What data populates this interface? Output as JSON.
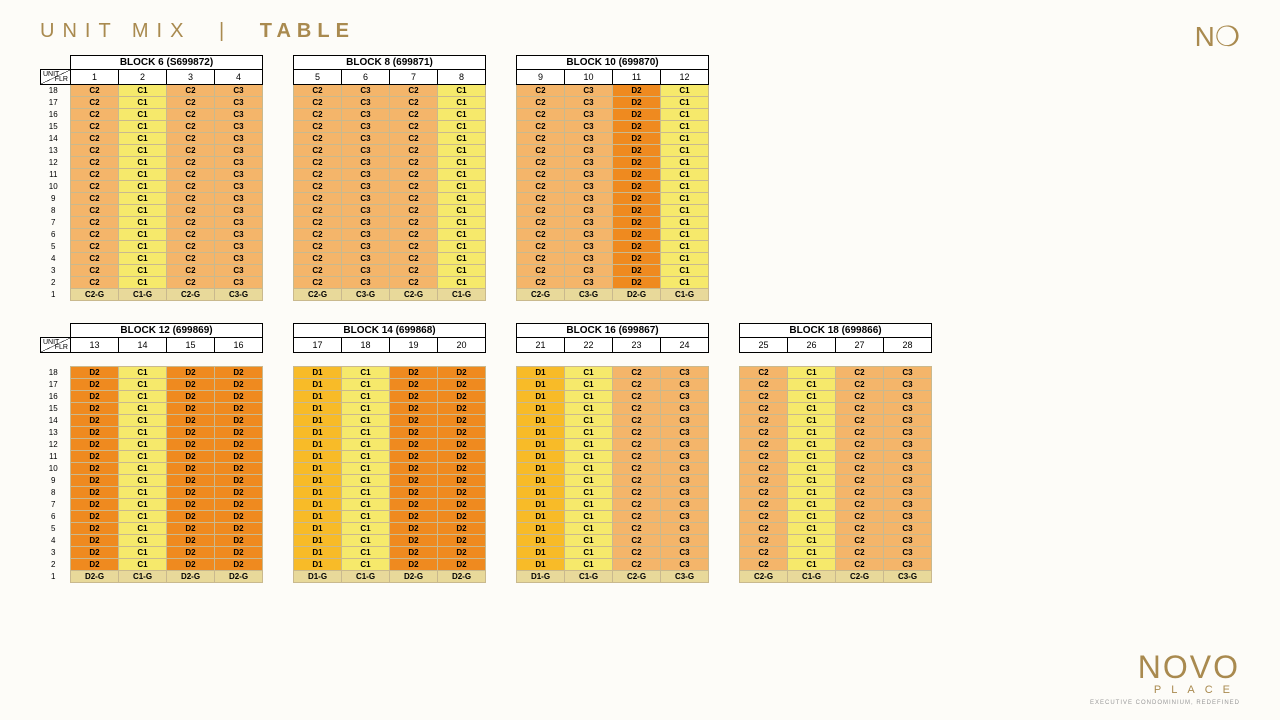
{
  "title_left": "UNIT MIX",
  "title_sep": "|",
  "title_right": "TABLE",
  "logo_top": "N❍",
  "logo_novo": "NOVO",
  "logo_place": "PLACE",
  "logo_tag": "EXECUTIVE CONDOMINIUM, REDEFINED",
  "unit_label": "UNIT",
  "flr_label": "FLR",
  "colors": {
    "C1": "#f6e96b",
    "C2": "#f4b56a",
    "C3": "#f4b56a",
    "D1": "#f8bb28",
    "D2": "#ef8a1f",
    "G": "#e8d99a"
  },
  "floors_desc": [
    18,
    17,
    16,
    15,
    14,
    13,
    12,
    11,
    10,
    9,
    8,
    7,
    6,
    5,
    4,
    3,
    2,
    1
  ],
  "blocks_row1": [
    {
      "title": "BLOCK   6 (S699872)",
      "cols": [
        1,
        2,
        3,
        4
      ],
      "pat": [
        "C2",
        "C1",
        "C2",
        "C3"
      ],
      "gpat": [
        "C2-G",
        "C1-G",
        "C2-G",
        "C3-G"
      ],
      "showFlr": true
    },
    {
      "title": "BLOCK   8 (699871)",
      "cols": [
        5,
        6,
        7,
        8
      ],
      "pat": [
        "C2",
        "C3",
        "C2",
        "C1"
      ],
      "gpat": [
        "C2-G",
        "C3-G",
        "C2-G",
        "C1-G"
      ]
    },
    {
      "title": "BLOCK   10 (699870)",
      "cols": [
        9,
        10,
        11,
        12
      ],
      "pat": [
        "C2",
        "C3",
        "D2",
        "C1"
      ],
      "gpat": [
        "C2-G",
        "C3-G",
        "D2-G",
        "C1-G"
      ]
    }
  ],
  "blocks_row2": [
    {
      "title": "BLOCK   12 (699869)",
      "cols": [
        13,
        14,
        15,
        16
      ],
      "pat": [
        "D2",
        "C1",
        "D2",
        "D2"
      ],
      "gpat": [
        "D2-G",
        "C1-G",
        "D2-G",
        "D2-G"
      ],
      "showFlr": true
    },
    {
      "title": "BLOCK   14 (699868)",
      "cols": [
        17,
        18,
        19,
        20
      ],
      "pat": [
        "D1",
        "C1",
        "D2",
        "D2"
      ],
      "gpat": [
        "D1-G",
        "C1-G",
        "D2-G",
        "D2-G"
      ]
    },
    {
      "title": "BLOCK   16 (699867)",
      "cols": [
        21,
        22,
        23,
        24
      ],
      "pat": [
        "D1",
        "C1",
        "C2",
        "C3"
      ],
      "gpat": [
        "D1-G",
        "C1-G",
        "C2-G",
        "C3-G"
      ]
    },
    {
      "title": "BLOCK   18 (699866)",
      "cols": [
        25,
        26,
        27,
        28
      ],
      "pat": [
        "C2",
        "C1",
        "C2",
        "C3"
      ],
      "gpat": [
        "C2-G",
        "C1-G",
        "C2-G",
        "C3-G"
      ]
    }
  ]
}
